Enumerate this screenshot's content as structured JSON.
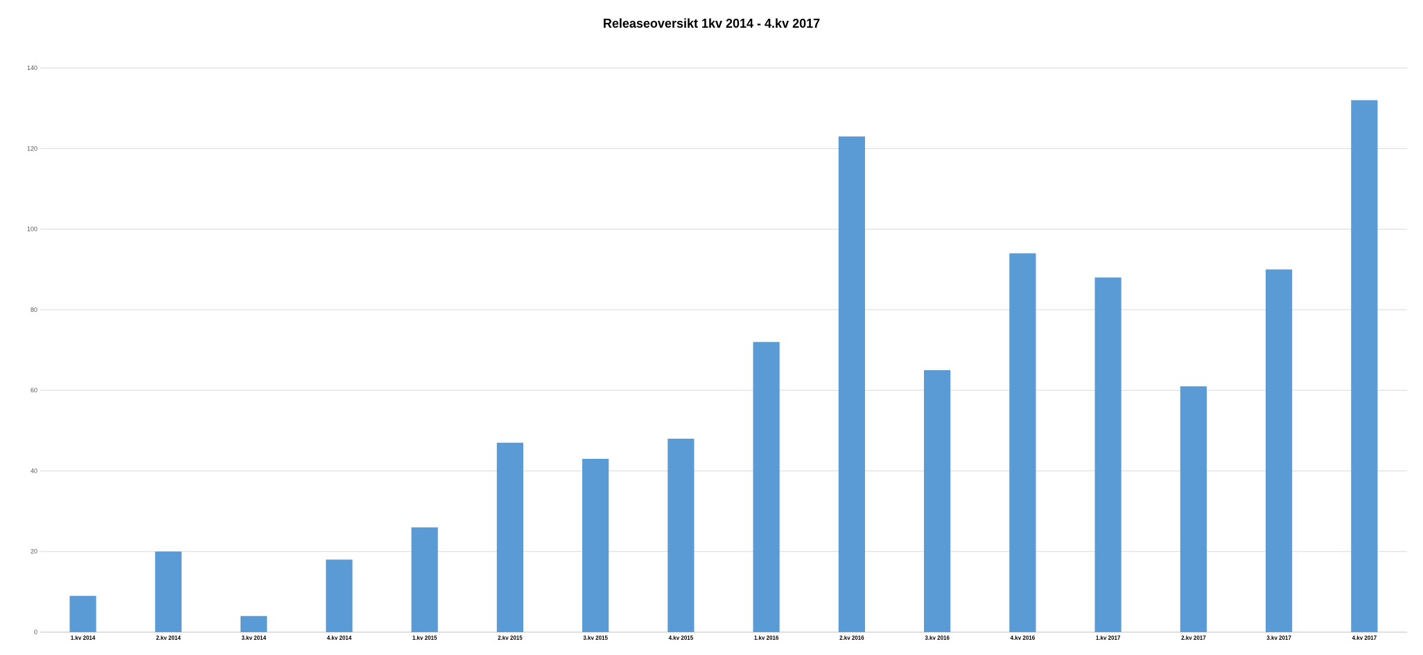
{
  "chart_data": {
    "type": "bar",
    "title": "Releaseoversikt 1kv 2014  - 4.kv 2017",
    "xlabel": "",
    "ylabel": "",
    "categories": [
      "1.kv 2014",
      "2.kv 2014",
      "3.kv 2014",
      "4.kv 2014",
      "1.kv 2015",
      "2.kv 2015",
      "3.kv 2015",
      "4.kv 2015",
      "1.kv 2016",
      "2.kv 2016",
      "3.kv 2016",
      "4.kv 2016",
      "1.kv 2017",
      "2.kv 2017",
      "3.kv 2017",
      "4.kv 2017"
    ],
    "series": [
      {
        "values": [
          9,
          20,
          4,
          18,
          26,
          47,
          43,
          48,
          72,
          123,
          65,
          94,
          88,
          61,
          90,
          132
        ]
      }
    ],
    "ylim": [
      0,
      140
    ],
    "yticks": [
      0,
      20,
      40,
      60,
      80,
      100,
      120,
      140
    ],
    "grid": true,
    "legend": "none",
    "colors": {
      "bar": "#5b9bd5",
      "grid": "#d9d9d9",
      "axis": "#bfbfbf"
    }
  }
}
